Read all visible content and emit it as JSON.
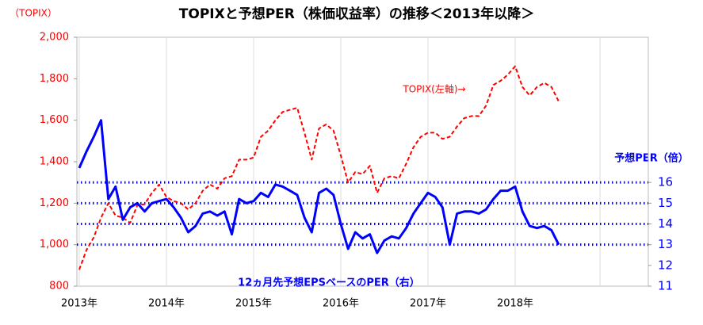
{
  "chart_data": {
    "type": "line",
    "title": "TOPIXと予想PER（株価収益率）の推移＜2013年以降＞",
    "ylabel": "（TOPIX）",
    "y2label": "予想PER（倍）",
    "categories": [
      "2013年",
      null,
      null,
      null,
      null,
      null,
      null,
      null,
      null,
      null,
      null,
      null,
      "2014年",
      null,
      null,
      null,
      null,
      null,
      null,
      null,
      null,
      null,
      null,
      null,
      "2015年",
      null,
      null,
      null,
      null,
      null,
      null,
      null,
      null,
      null,
      null,
      null,
      "2016年",
      null,
      null,
      null,
      null,
      null,
      null,
      null,
      null,
      null,
      null,
      null,
      "2017年",
      null,
      null,
      null,
      null,
      null,
      null,
      null,
      null,
      null,
      null,
      null,
      "2018年",
      null,
      null,
      null,
      null,
      null,
      null
    ],
    "series": [
      {
        "name": "TOPIX(左軸)→",
        "color": "#ff0000",
        "dash": true,
        "values": [
          880,
          975,
          1035,
          1130,
          1200,
          1140,
          1130,
          1105,
          1190,
          1195,
          1250,
          1290,
          1230,
          1210,
          1200,
          1170,
          1200,
          1260,
          1290,
          1270,
          1320,
          1330,
          1410,
          1410,
          1420,
          1520,
          1550,
          1600,
          1640,
          1650,
          1660,
          1540,
          1410,
          1560,
          1580,
          1550,
          1430,
          1300,
          1350,
          1340,
          1380,
          1250,
          1320,
          1330,
          1320,
          1390,
          1470,
          1520,
          1540,
          1540,
          1510,
          1520,
          1570,
          1610,
          1620,
          1620,
          1670,
          1770,
          1790,
          1820,
          1860,
          1760,
          1720,
          1760,
          1780,
          1760,
          1690
        ]
      },
      {
        "name": "12ヵ月先予想EPSベースのPER（右）",
        "color": "#0000ff",
        "axis": "y2",
        "values": [
          16.7,
          17.5,
          18.2,
          19.0,
          15.2,
          15.8,
          14.2,
          14.8,
          15.0,
          14.6,
          15.0,
          15.1,
          15.2,
          14.8,
          14.3,
          13.6,
          13.9,
          14.5,
          14.6,
          14.4,
          14.6,
          13.5,
          15.2,
          15.0,
          15.1,
          15.5,
          15.3,
          15.9,
          15.8,
          15.6,
          15.4,
          14.3,
          13.6,
          15.5,
          15.7,
          15.4,
          14.0,
          12.8,
          13.6,
          13.3,
          13.5,
          12.6,
          13.2,
          13.4,
          13.3,
          13.8,
          14.5,
          15.0,
          15.5,
          15.3,
          14.8,
          13.0,
          14.5,
          14.6,
          14.6,
          14.5,
          14.7,
          15.2,
          15.6,
          15.6,
          15.8,
          14.6,
          13.9,
          13.8,
          13.9,
          13.7,
          13.0
        ]
      }
    ],
    "ylim": [
      800,
      2000
    ],
    "yticks": [
      800,
      {
        "value": 1000,
        "label": "1,000"
      },
      {
        "value": 1200,
        "label": "1,200"
      },
      {
        "value": 1400,
        "label": "1,400"
      },
      {
        "value": 1600,
        "label": "1,600"
      },
      {
        "value": 1800,
        "label": "1,800"
      },
      {
        "value": 2000,
        "label": "2,000"
      }
    ],
    "y2lim": [
      11,
      23
    ],
    "y2ticks": [
      11,
      12,
      13,
      14,
      15,
      16
    ],
    "y2_reference_lines": [
      13,
      14,
      15,
      16
    ],
    "ytick_color": "#ff0000",
    "y2tick_color": "#0000ff"
  }
}
